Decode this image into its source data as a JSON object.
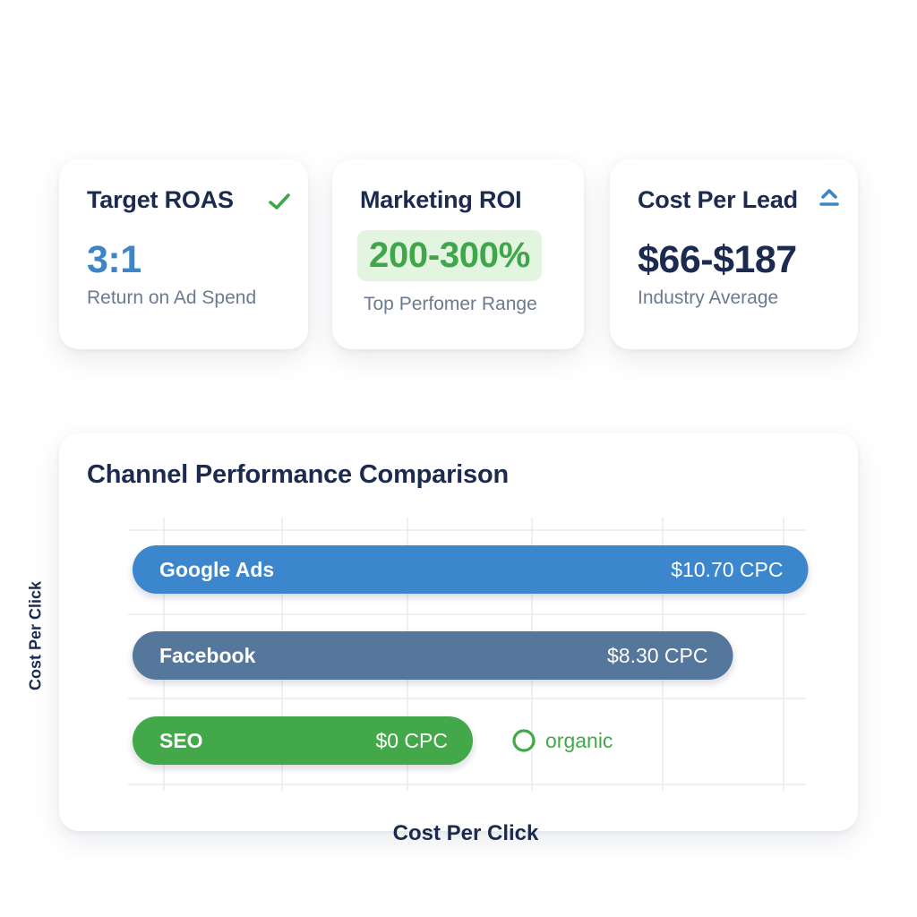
{
  "kpis": [
    {
      "title": "Target ROAS",
      "value": "3:1",
      "subtitle": "Return on Ad Spend",
      "icon": "check-icon",
      "icon_color": "#3fa64a"
    },
    {
      "title": "Marketing ROI",
      "value": "200-300%",
      "subtitle": "Top Perfomer Range",
      "value_color": "#3fa64a",
      "pill_color": "#e3f4e1"
    },
    {
      "title": "Cost Per Lead",
      "value": "$66-$187",
      "subtitle": "Industry Average",
      "icon": "chevron-up-icon",
      "icon_color": "#3d85c6"
    }
  ],
  "chart_data": {
    "type": "bar",
    "orientation": "horizontal",
    "title": "Channel Performance Comparison",
    "xlabel": "Cost Per Click",
    "ylabel": "Cost Per Click",
    "grid": true,
    "categories": [
      "Google Ads",
      "Facebook",
      "SEO"
    ],
    "values": [
      10.7,
      8.3,
      0
    ],
    "value_labels": [
      "$10.70 CPC",
      "$8.30 CPC",
      "$0 CPC"
    ],
    "colors": [
      "#3a86cc",
      "#55779c",
      "#43a84a"
    ],
    "annotation": {
      "text": "organic",
      "color": "#43a84a",
      "category": "SEO"
    }
  }
}
